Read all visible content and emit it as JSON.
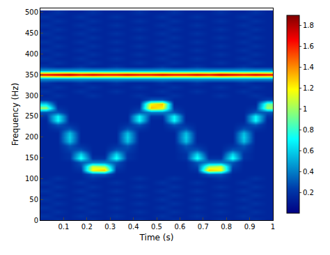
{
  "chart_data": {
    "type": "heatmap",
    "x_label": "Time (s)",
    "y_label": "Frequency (Hz)",
    "color": "Jet",
    "xlim": [
      0,
      1
    ],
    "xticks": [
      0.1,
      0.2,
      0.3,
      0.4,
      0.5,
      0.6,
      0.7,
      0.8,
      0.9,
      1
    ],
    "ylim": [
      0,
      510
    ],
    "yticks": [
      0,
      50,
      100,
      150,
      200,
      250,
      300,
      350,
      400,
      450,
      500
    ],
    "clim": [
      0,
      1.9
    ],
    "cticks": [
      0.2,
      0.4,
      0.6,
      0.8,
      1,
      1.2,
      1.4,
      1.6,
      1.8
    ],
    "x": [
      0.025,
      0.075,
      0.125,
      0.175,
      0.225,
      0.275,
      0.325,
      0.375,
      0.425,
      0.475,
      0.525,
      0.575,
      0.625,
      0.675,
      0.725,
      0.775,
      0.825,
      0.875,
      0.925,
      0.975
    ],
    "y": [
      0,
      10,
      20,
      30,
      40,
      50,
      60,
      70,
      80,
      90,
      100,
      110,
      120,
      130,
      140,
      150,
      160,
      170,
      180,
      190,
      200,
      210,
      220,
      230,
      240,
      250,
      260,
      270,
      280,
      290,
      300,
      310,
      320,
      330,
      340,
      350,
      360,
      370,
      380,
      390,
      400,
      410,
      420,
      430,
      440,
      450,
      460,
      470,
      480,
      490,
      500
    ],
    "z": [
      [
        0.15,
        0.2,
        0.15,
        0.15,
        0.2,
        0.15,
        0.15,
        0.15,
        0.2,
        0.15,
        0.15,
        0.2,
        0.15,
        0.15,
        0.15,
        0.2,
        0.15,
        0.15,
        0.2,
        0.15
      ],
      [
        0.2,
        0.15,
        0.15,
        0.2,
        0.15,
        0.15,
        0.2,
        0.15,
        0.15,
        0.15,
        0.2,
        0.15,
        0.15,
        0.2,
        0.15,
        0.15,
        0.15,
        0.2,
        0.15,
        0.15
      ],
      [
        0.15,
        0.2,
        0.15,
        0.15,
        0.2,
        0.15,
        0.15,
        0.15,
        0.2,
        0.15,
        0.15,
        0.2,
        0.15,
        0.15,
        0.15,
        0.2,
        0.15,
        0.15,
        0.2,
        0.15
      ],
      [
        0.2,
        0.15,
        0.15,
        0.2,
        0.15,
        0.15,
        0.2,
        0.15,
        0.15,
        0.15,
        0.2,
        0.15,
        0.15,
        0.2,
        0.15,
        0.15,
        0.15,
        0.2,
        0.15,
        0.15
      ],
      [
        0.15,
        0.2,
        0.15,
        0.15,
        0.2,
        0.15,
        0.15,
        0.15,
        0.2,
        0.15,
        0.15,
        0.2,
        0.15,
        0.15,
        0.15,
        0.2,
        0.15,
        0.15,
        0.2,
        0.15
      ],
      [
        0.2,
        0.15,
        0.15,
        0.2,
        0.15,
        0.15,
        0.2,
        0.15,
        0.15,
        0.15,
        0.2,
        0.15,
        0.15,
        0.2,
        0.15,
        0.15,
        0.15,
        0.2,
        0.15,
        0.15
      ],
      [
        0.15,
        0.2,
        0.15,
        0.15,
        0.2,
        0.15,
        0.15,
        0.15,
        0.2,
        0.15,
        0.15,
        0.2,
        0.15,
        0.15,
        0.15,
        0.2,
        0.15,
        0.15,
        0.2,
        0.15
      ],
      [
        0.2,
        0.15,
        0.15,
        0.2,
        0.15,
        0.15,
        0.2,
        0.15,
        0.15,
        0.15,
        0.2,
        0.15,
        0.15,
        0.2,
        0.15,
        0.15,
        0.15,
        0.2,
        0.15,
        0.15
      ],
      [
        0.15,
        0.2,
        0.15,
        0.15,
        0.2,
        0.15,
        0.15,
        0.15,
        0.2,
        0.15,
        0.15,
        0.2,
        0.15,
        0.15,
        0.15,
        0.2,
        0.15,
        0.15,
        0.2,
        0.15
      ],
      [
        0.2,
        0.15,
        0.15,
        0.2,
        0.15,
        0.15,
        0.2,
        0.15,
        0.15,
        0.15,
        0.2,
        0.15,
        0.15,
        0.2,
        0.15,
        0.15,
        0.15,
        0.2,
        0.15,
        0.15
      ],
      [
        0.15,
        0.2,
        0.15,
        0.15,
        0.2,
        0.15,
        0.15,
        0.15,
        0.2,
        0.15,
        0.15,
        0.2,
        0.15,
        0.15,
        0.15,
        0.2,
        0.15,
        0.15,
        0.2,
        0.15
      ],
      [
        0.15,
        0.15,
        0.15,
        0.15,
        0.3,
        0.3,
        0.15,
        0.15,
        0.15,
        0.15,
        0.15,
        0.15,
        0.15,
        0.15,
        0.3,
        0.3,
        0.15,
        0.15,
        0.15,
        0.15
      ],
      [
        0.15,
        0.15,
        0.15,
        0.2,
        1.2,
        1.3,
        0.2,
        0.15,
        0.15,
        0.15,
        0.15,
        0.15,
        0.15,
        0.2,
        1.3,
        1.2,
        0.2,
        0.15,
        0.15,
        0.15
      ],
      [
        0.15,
        0.15,
        0.15,
        0.25,
        1.1,
        1.0,
        0.25,
        0.15,
        0.15,
        0.15,
        0.15,
        0.15,
        0.15,
        0.25,
        1.0,
        1.1,
        0.25,
        0.15,
        0.15,
        0.15
      ],
      [
        0.15,
        0.15,
        0.15,
        0.3,
        0.4,
        0.4,
        0.3,
        0.15,
        0.15,
        0.15,
        0.15,
        0.15,
        0.15,
        0.3,
        0.4,
        0.4,
        0.3,
        0.15,
        0.15,
        0.15
      ],
      [
        0.15,
        0.15,
        0.2,
        0.75,
        0.2,
        0.2,
        0.75,
        0.2,
        0.15,
        0.15,
        0.15,
        0.15,
        0.2,
        0.75,
        0.2,
        0.2,
        0.75,
        0.2,
        0.15,
        0.15
      ],
      [
        0.15,
        0.15,
        0.2,
        0.6,
        0.15,
        0.15,
        0.6,
        0.2,
        0.15,
        0.15,
        0.15,
        0.15,
        0.2,
        0.6,
        0.15,
        0.15,
        0.6,
        0.2,
        0.15,
        0.15
      ],
      [
        0.15,
        0.15,
        0.25,
        0.3,
        0.15,
        0.15,
        0.3,
        0.25,
        0.15,
        0.15,
        0.15,
        0.15,
        0.25,
        0.3,
        0.15,
        0.15,
        0.3,
        0.25,
        0.15,
        0.15
      ],
      [
        0.15,
        0.15,
        0.3,
        0.2,
        0.15,
        0.15,
        0.2,
        0.3,
        0.15,
        0.15,
        0.15,
        0.15,
        0.3,
        0.2,
        0.15,
        0.15,
        0.2,
        0.3,
        0.15,
        0.15
      ],
      [
        0.15,
        0.15,
        0.55,
        0.15,
        0.15,
        0.15,
        0.15,
        0.55,
        0.15,
        0.15,
        0.15,
        0.15,
        0.55,
        0.15,
        0.15,
        0.15,
        0.15,
        0.55,
        0.15,
        0.15
      ],
      [
        0.15,
        0.15,
        0.6,
        0.15,
        0.15,
        0.15,
        0.15,
        0.6,
        0.15,
        0.15,
        0.15,
        0.15,
        0.6,
        0.15,
        0.15,
        0.15,
        0.15,
        0.6,
        0.15,
        0.15
      ],
      [
        0.15,
        0.15,
        0.55,
        0.15,
        0.15,
        0.15,
        0.15,
        0.55,
        0.15,
        0.15,
        0.15,
        0.15,
        0.55,
        0.15,
        0.15,
        0.15,
        0.15,
        0.55,
        0.15,
        0.15
      ],
      [
        0.15,
        0.2,
        0.3,
        0.15,
        0.15,
        0.15,
        0.15,
        0.3,
        0.2,
        0.15,
        0.15,
        0.2,
        0.3,
        0.15,
        0.15,
        0.15,
        0.15,
        0.3,
        0.2,
        0.15
      ],
      [
        0.15,
        0.3,
        0.2,
        0.15,
        0.15,
        0.15,
        0.15,
        0.2,
        0.3,
        0.15,
        0.15,
        0.3,
        0.2,
        0.15,
        0.15,
        0.15,
        0.15,
        0.2,
        0.3,
        0.15
      ],
      [
        0.15,
        0.7,
        0.15,
        0.15,
        0.15,
        0.15,
        0.15,
        0.15,
        0.7,
        0.15,
        0.15,
        0.7,
        0.15,
        0.15,
        0.15,
        0.15,
        0.15,
        0.15,
        0.7,
        0.15
      ],
      [
        0.2,
        0.7,
        0.15,
        0.15,
        0.15,
        0.15,
        0.15,
        0.15,
        0.7,
        0.2,
        0.2,
        0.7,
        0.15,
        0.15,
        0.15,
        0.15,
        0.15,
        0.15,
        0.7,
        0.2
      ],
      [
        0.3,
        0.3,
        0.15,
        0.15,
        0.15,
        0.15,
        0.15,
        0.15,
        0.3,
        0.4,
        0.4,
        0.3,
        0.15,
        0.15,
        0.15,
        0.15,
        0.15,
        0.15,
        0.3,
        0.3
      ],
      [
        1.0,
        0.2,
        0.15,
        0.15,
        0.15,
        0.15,
        0.15,
        0.15,
        0.2,
        1.3,
        1.2,
        0.2,
        0.15,
        0.15,
        0.15,
        0.15,
        0.15,
        0.15,
        0.2,
        1.0
      ],
      [
        0.6,
        0.15,
        0.15,
        0.15,
        0.15,
        0.15,
        0.15,
        0.15,
        0.15,
        1.2,
        1.3,
        0.15,
        0.15,
        0.15,
        0.15,
        0.15,
        0.15,
        0.15,
        0.15,
        0.9
      ],
      [
        0.2,
        0.15,
        0.15,
        0.15,
        0.15,
        0.15,
        0.15,
        0.15,
        0.15,
        0.3,
        0.3,
        0.15,
        0.15,
        0.15,
        0.15,
        0.15,
        0.15,
        0.15,
        0.15,
        0.25
      ],
      [
        0.15,
        0.2,
        0.15,
        0.15,
        0.2,
        0.15,
        0.15,
        0.15,
        0.2,
        0.15,
        0.15,
        0.2,
        0.15,
        0.15,
        0.15,
        0.2,
        0.15,
        0.15,
        0.2,
        0.15
      ],
      [
        0.2,
        0.15,
        0.15,
        0.2,
        0.15,
        0.15,
        0.2,
        0.15,
        0.15,
        0.15,
        0.2,
        0.15,
        0.15,
        0.2,
        0.15,
        0.15,
        0.15,
        0.2,
        0.15,
        0.15
      ],
      [
        0.15,
        0.2,
        0.15,
        0.15,
        0.2,
        0.15,
        0.15,
        0.15,
        0.2,
        0.15,
        0.15,
        0.2,
        0.15,
        0.15,
        0.15,
        0.2,
        0.15,
        0.15,
        0.2,
        0.15
      ],
      [
        0.2,
        0.15,
        0.15,
        0.2,
        0.15,
        0.15,
        0.2,
        0.15,
        0.15,
        0.15,
        0.2,
        0.15,
        0.15,
        0.2,
        0.15,
        0.15,
        0.15,
        0.2,
        0.15,
        0.15
      ],
      [
        0.45,
        0.45,
        0.45,
        0.45,
        0.45,
        0.45,
        0.45,
        0.45,
        0.45,
        0.45,
        0.45,
        0.45,
        0.45,
        0.45,
        0.45,
        0.45,
        0.45,
        0.45,
        0.45,
        0.45
      ],
      [
        1.7,
        1.75,
        1.8,
        1.7,
        1.75,
        1.7,
        1.7,
        1.75,
        1.7,
        1.7,
        1.75,
        1.7,
        1.7,
        1.75,
        1.7,
        1.8,
        1.75,
        1.7,
        1.75,
        1.7
      ],
      [
        0.45,
        0.45,
        0.45,
        0.45,
        0.45,
        0.45,
        0.45,
        0.45,
        0.45,
        0.45,
        0.45,
        0.45,
        0.45,
        0.45,
        0.45,
        0.45,
        0.45,
        0.45,
        0.45,
        0.45
      ],
      [
        0.2,
        0.15,
        0.15,
        0.2,
        0.15,
        0.15,
        0.2,
        0.15,
        0.15,
        0.15,
        0.2,
        0.15,
        0.15,
        0.2,
        0.15,
        0.15,
        0.15,
        0.2,
        0.15,
        0.15
      ],
      [
        0.15,
        0.2,
        0.15,
        0.15,
        0.2,
        0.15,
        0.15,
        0.15,
        0.2,
        0.15,
        0.15,
        0.2,
        0.15,
        0.15,
        0.15,
        0.2,
        0.15,
        0.15,
        0.2,
        0.15
      ],
      [
        0.2,
        0.15,
        0.15,
        0.2,
        0.15,
        0.15,
        0.2,
        0.15,
        0.15,
        0.15,
        0.2,
        0.15,
        0.15,
        0.2,
        0.15,
        0.15,
        0.15,
        0.2,
        0.15,
        0.15
      ],
      [
        0.15,
        0.2,
        0.15,
        0.15,
        0.2,
        0.15,
        0.15,
        0.15,
        0.2,
        0.15,
        0.15,
        0.2,
        0.15,
        0.15,
        0.15,
        0.2,
        0.15,
        0.15,
        0.2,
        0.15
      ],
      [
        0.2,
        0.15,
        0.15,
        0.2,
        0.15,
        0.15,
        0.2,
        0.15,
        0.15,
        0.15,
        0.2,
        0.15,
        0.15,
        0.2,
        0.15,
        0.15,
        0.15,
        0.2,
        0.15,
        0.15
      ],
      [
        0.15,
        0.2,
        0.15,
        0.15,
        0.2,
        0.15,
        0.15,
        0.15,
        0.2,
        0.15,
        0.15,
        0.2,
        0.15,
        0.15,
        0.15,
        0.2,
        0.15,
        0.15,
        0.2,
        0.15
      ],
      [
        0.2,
        0.15,
        0.15,
        0.2,
        0.15,
        0.15,
        0.2,
        0.15,
        0.15,
        0.15,
        0.2,
        0.15,
        0.15,
        0.2,
        0.15,
        0.15,
        0.15,
        0.2,
        0.15,
        0.15
      ],
      [
        0.15,
        0.2,
        0.15,
        0.15,
        0.2,
        0.15,
        0.15,
        0.15,
        0.2,
        0.15,
        0.15,
        0.2,
        0.15,
        0.15,
        0.15,
        0.2,
        0.15,
        0.15,
        0.2,
        0.15
      ],
      [
        0.2,
        0.15,
        0.15,
        0.2,
        0.15,
        0.15,
        0.2,
        0.15,
        0.15,
        0.15,
        0.2,
        0.15,
        0.15,
        0.2,
        0.15,
        0.15,
        0.15,
        0.2,
        0.15,
        0.15
      ],
      [
        0.15,
        0.2,
        0.15,
        0.15,
        0.2,
        0.15,
        0.15,
        0.15,
        0.2,
        0.15,
        0.15,
        0.2,
        0.15,
        0.15,
        0.15,
        0.2,
        0.15,
        0.15,
        0.2,
        0.15
      ],
      [
        0.2,
        0.15,
        0.15,
        0.2,
        0.15,
        0.15,
        0.2,
        0.15,
        0.15,
        0.15,
        0.2,
        0.15,
        0.15,
        0.2,
        0.15,
        0.15,
        0.15,
        0.2,
        0.15,
        0.15
      ],
      [
        0.15,
        0.2,
        0.15,
        0.15,
        0.2,
        0.15,
        0.15,
        0.15,
        0.2,
        0.15,
        0.15,
        0.2,
        0.15,
        0.15,
        0.15,
        0.2,
        0.15,
        0.15,
        0.2,
        0.15
      ],
      [
        0.2,
        0.15,
        0.15,
        0.2,
        0.15,
        0.15,
        0.2,
        0.15,
        0.15,
        0.15,
        0.2,
        0.15,
        0.15,
        0.2,
        0.15,
        0.15,
        0.15,
        0.2,
        0.15,
        0.15
      ],
      [
        0.15,
        0.2,
        0.15,
        0.15,
        0.2,
        0.15,
        0.15,
        0.15,
        0.2,
        0.15,
        0.15,
        0.2,
        0.15,
        0.15,
        0.15,
        0.2,
        0.15,
        0.15,
        0.2,
        0.15
      ]
    ]
  }
}
